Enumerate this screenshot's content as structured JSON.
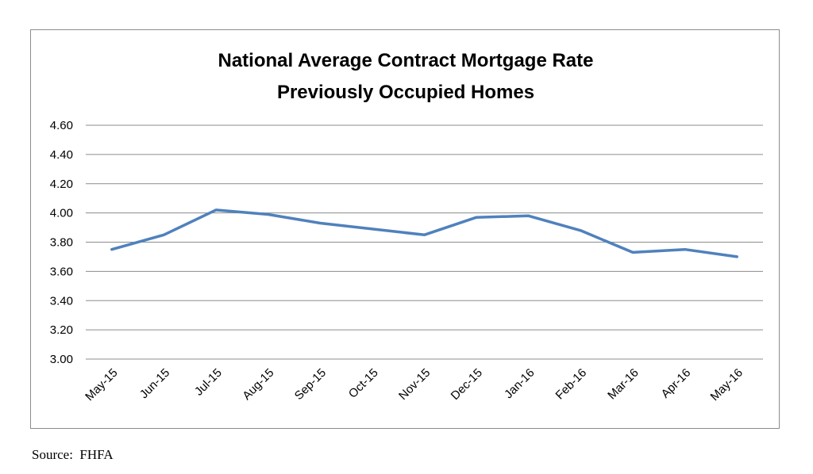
{
  "chart_data": {
    "type": "line",
    "title": [
      "National Average Contract Mortgage Rate",
      "Previously Occupied Homes"
    ],
    "xlabel": "",
    "ylabel": "",
    "categories": [
      "May-15",
      "Jun-15",
      "Jul-15",
      "Aug-15",
      "Sep-15",
      "Oct-15",
      "Nov-15",
      "Dec-15",
      "Jan-16",
      "Feb-16",
      "Mar-16",
      "Apr-16",
      "May-16"
    ],
    "y_ticks": [
      "3.00",
      "3.20",
      "3.40",
      "3.60",
      "3.80",
      "4.00",
      "4.20",
      "4.40",
      "4.60"
    ],
    "ylim": [
      3.0,
      4.6
    ],
    "grid": true,
    "legend": "none",
    "series": [
      {
        "color": "#4f81bd",
        "values": [
          3.75,
          3.85,
          4.02,
          3.99,
          3.93,
          3.89,
          3.85,
          3.97,
          3.98,
          3.88,
          3.73,
          3.75,
          3.7
        ]
      }
    ]
  },
  "source": "Source:  FHFA"
}
